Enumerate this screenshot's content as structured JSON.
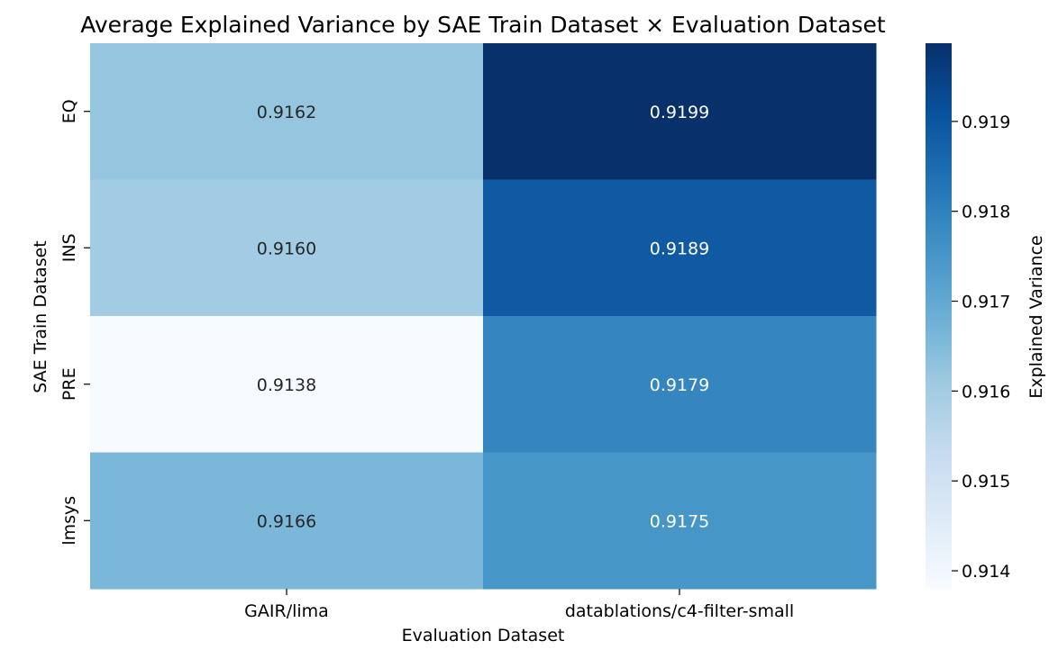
{
  "chart_data": {
    "type": "heatmap",
    "title": "Average Explained Variance by SAE Train Dataset × Evaluation Dataset",
    "xlabel": "Evaluation Dataset",
    "ylabel": "SAE Train Dataset",
    "x_categories": [
      "GAIR/lima",
      "datablations/c4-filter-small"
    ],
    "y_categories": [
      "EQ",
      "INS",
      "PRE",
      "lmsys"
    ],
    "values": [
      [
        0.9162,
        0.9199
      ],
      [
        0.916,
        0.9189
      ],
      [
        0.9138,
        0.9179
      ],
      [
        0.9166,
        0.9175
      ]
    ],
    "value_labels": [
      [
        "0.9162",
        "0.9199"
      ],
      [
        "0.9160",
        "0.9189"
      ],
      [
        "0.9138",
        "0.9179"
      ],
      [
        "0.9166",
        "0.9175"
      ]
    ],
    "colormap": "Blues",
    "colorbar": {
      "label": "Explained Variance",
      "vmin": 0.91381,
      "vmax": 0.91987,
      "ticks": [
        0.914,
        0.915,
        0.916,
        0.917,
        0.918,
        0.919
      ],
      "tick_labels": [
        "0.914",
        "0.915",
        "0.916",
        "0.917",
        "0.918",
        "0.919"
      ]
    }
  }
}
